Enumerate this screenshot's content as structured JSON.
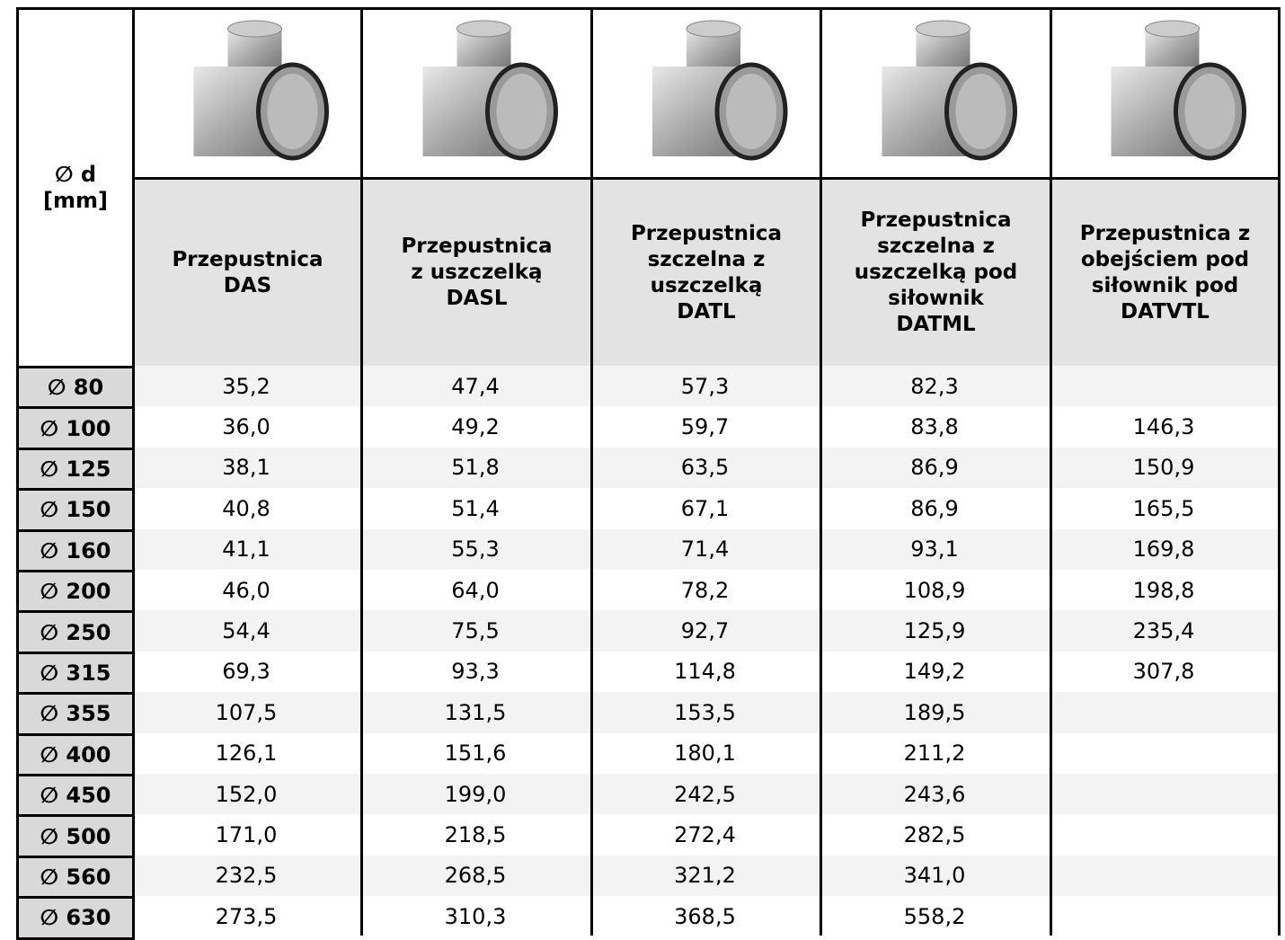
{
  "header": {
    "diameter": [
      "∅ d",
      "[mm]"
    ],
    "columns": [
      [
        "Przepustnica",
        "DAS"
      ],
      [
        "Przepustnica",
        "z uszczelką",
        "DASL"
      ],
      [
        "Przepustnica",
        "szczelna z",
        "uszczelką",
        "DATL"
      ],
      [
        "Przepustnica",
        "szczelna z",
        "uszczelką pod",
        "siłownik",
        "DATML"
      ],
      [
        "Przepustnica z",
        "obejściem pod",
        "siłownik pod",
        "DATVTL"
      ]
    ]
  },
  "table": {
    "rows": [
      [
        "∅ 80",
        "35,2",
        "47,4",
        "57,3",
        "82,3",
        null
      ],
      [
        "∅ 100",
        "36,0",
        "49,2",
        "59,7",
        "83,8",
        "146,3"
      ],
      [
        "∅ 125",
        "38,1",
        "51,8",
        "63,5",
        "86,9",
        "150,9"
      ],
      [
        "∅ 150",
        "40,8",
        "51,4",
        "67,1",
        "86,9",
        "165,5"
      ],
      [
        "∅ 160",
        "41,1",
        "55,3",
        "71,4",
        "93,1",
        "169,8"
      ],
      [
        "∅ 200",
        "46,0",
        "64,0",
        "78,2",
        "108,9",
        "198,8"
      ],
      [
        "∅ 250",
        "54,4",
        "75,5",
        "92,7",
        "125,9",
        "235,4"
      ],
      [
        "∅ 315",
        "69,3",
        "93,3",
        "114,8",
        "149,2",
        "307,8"
      ],
      [
        "∅ 355",
        "107,5",
        "131,5",
        "153,5",
        "189,5",
        null
      ],
      [
        "∅ 400",
        "126,1",
        "151,6",
        "180,1",
        "211,2",
        null
      ],
      [
        "∅ 450",
        "152,0",
        "199,0",
        "242,5",
        "243,6",
        null
      ],
      [
        "∅ 500",
        "171,0",
        "218,5",
        "272,4",
        "282,5",
        null
      ],
      [
        "∅ 560",
        "232,5",
        "268,5",
        "321,2",
        "341,0",
        null
      ],
      [
        "∅ 630",
        "273,5",
        "310,3",
        "368,5",
        "558,2",
        null
      ]
    ]
  }
}
